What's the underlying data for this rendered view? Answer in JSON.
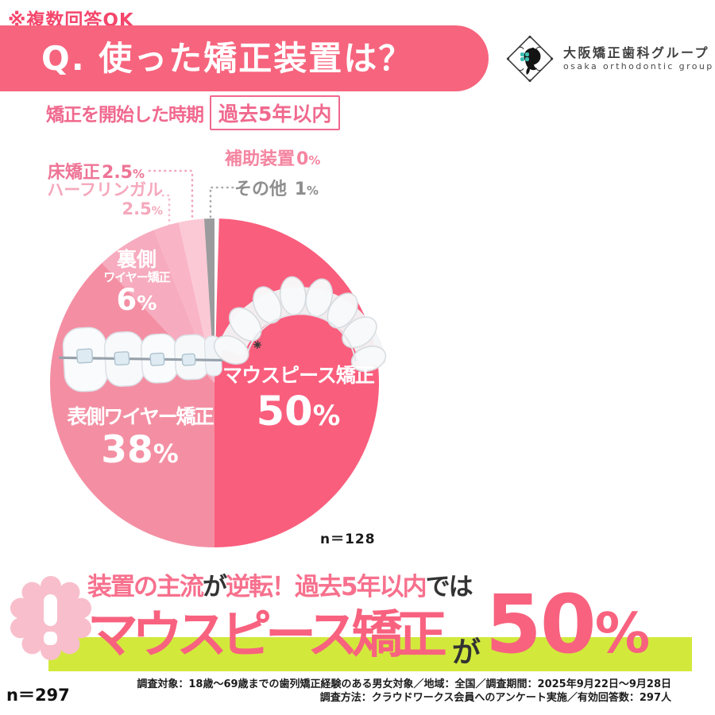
{
  "colors": {
    "accent_pink": "#F7647D",
    "deep_pink": "#F4466B",
    "label_pink": "#F0698E",
    "highlight_green": "#D2E93C",
    "slice_gray": "#9B9B9D"
  },
  "note_top": "※複数回答OK",
  "header": {
    "title": "Q. 使った矯正装置は？"
  },
  "logo": {
    "name_jp": "大阪矯正歯科グループ",
    "name_en": "osaka orthodontic group"
  },
  "subheader": {
    "label": "矯正を開始した時期",
    "period_boxed": "過去5年以内"
  },
  "chart_data": {
    "type": "pie",
    "question": "使った矯正装置は？",
    "condition": "矯正を開始した時期：過去5年以内",
    "sample_label": "n＝128",
    "unit": "%",
    "slices": [
      {
        "label": "マウスピース矯正",
        "value": 50,
        "pct_text": "50%",
        "color": "#FA5E7D"
      },
      {
        "label": "表側ワイヤー矯正",
        "value": 38,
        "pct_text": "38%",
        "color": "#F48FA3"
      },
      {
        "label": "裏側ワイヤー矯正",
        "value": 6,
        "pct_text": "6%",
        "color": "#F7ABBE"
      },
      {
        "label": "ハーフリンガル",
        "value": 2.5,
        "pct_text": "2.5%",
        "color": "#F9B4C6"
      },
      {
        "label": "床矯正",
        "value": 2.5,
        "pct_text": "2.5%",
        "color": "#FBC9D5"
      },
      {
        "label": "補助装置",
        "value": 0,
        "pct_text": "0%",
        "color": "#F9A8BC"
      },
      {
        "label": "その他",
        "value": 1,
        "pct_text": "1%",
        "color": "#9B9B9D"
      }
    ]
  },
  "pie_text": {
    "back_label_line1": "裏側",
    "back_label_line2": "ワイヤー矯正"
  },
  "banner": {
    "seg1": "装置の主流",
    "seg2": "が",
    "seg3": "逆転！過去5年以内",
    "seg4": "では",
    "big_text": "マウスピース矯正",
    "connector": "が",
    "big_pct": "50%"
  },
  "footer": {
    "n_total": "n＝297",
    "line1": "調査対象：18歳〜69歳までの歯列矯正経験のある男女対象／地域：全国／調査期間：2025年9月22日〜9月28日",
    "line2": "調査方法：クラウドワークス会員へのアンケート実施／有効回答数：297人"
  }
}
